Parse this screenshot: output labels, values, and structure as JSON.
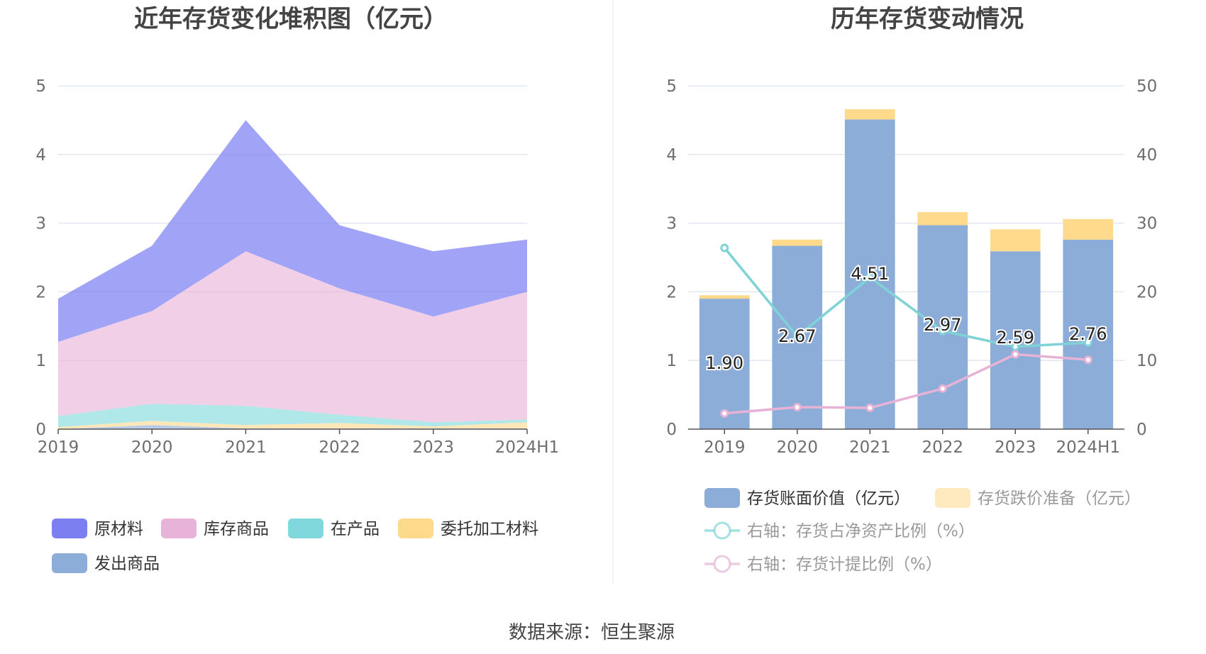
{
  "source_text": "数据来源：恒生聚源",
  "colors": {
    "raw_materials": "#7b7ff2",
    "stock_goods": "#e8b3d9",
    "wip": "#80d8dc",
    "consigned": "#ffd98c",
    "shipped": "#8dadd9",
    "book_value": "#8dadd9",
    "impairment": "#ffd98c",
    "ratio_line": "#7fd3d6",
    "provision_line": "#e6b3d6",
    "grid": "#e0e3f0"
  },
  "chart_data": [
    {
      "type": "area",
      "title": "近年存货变化堆积图（亿元）",
      "categories": [
        "2019",
        "2020",
        "2021",
        "2022",
        "2023",
        "2024H1"
      ],
      "ylim": [
        0,
        5
      ],
      "yticks": [
        "0",
        "1",
        "2",
        "3",
        "4",
        "5"
      ],
      "stacked": true,
      "grid": true,
      "legend_position": "bottom",
      "series": [
        {
          "name": "发出商品",
          "values": [
            0.0,
            0.06,
            0.01,
            0.01,
            0.01,
            0.01
          ]
        },
        {
          "name": "委托加工材料",
          "values": [
            0.03,
            0.06,
            0.05,
            0.08,
            0.03,
            0.09
          ]
        },
        {
          "name": "在产品",
          "values": [
            0.16,
            0.25,
            0.28,
            0.12,
            0.06,
            0.04
          ]
        },
        {
          "name": "库存商品",
          "values": [
            1.08,
            1.35,
            2.25,
            1.84,
            1.54,
            1.86
          ]
        },
        {
          "name": "原材料",
          "values": [
            0.63,
            0.95,
            1.91,
            0.92,
            0.95,
            0.76
          ]
        }
      ],
      "legend_order": [
        "原材料",
        "库存商品",
        "在产品",
        "委托加工材料",
        "发出商品"
      ]
    },
    {
      "type": "bar",
      "title": "历年存货变动情况",
      "categories": [
        "2019",
        "2020",
        "2021",
        "2022",
        "2023",
        "2024H1"
      ],
      "ylim": [
        0,
        5
      ],
      "yticks": [
        "0",
        "1",
        "2",
        "3",
        "4",
        "5"
      ],
      "y2lim": [
        0,
        50
      ],
      "y2ticks": [
        "0",
        "10",
        "20",
        "30",
        "40",
        "50"
      ],
      "stacked": true,
      "grid": true,
      "legend_position": "bottom",
      "series": [
        {
          "name": "存货账面价值（亿元）",
          "type": "bar",
          "axis": "left",
          "values": [
            1.9,
            2.67,
            4.51,
            2.97,
            2.59,
            2.76
          ],
          "labels": [
            "1.90",
            "2.67",
            "4.51",
            "2.97",
            "2.59",
            "2.76"
          ]
        },
        {
          "name": "存货跌价准备（亿元）",
          "type": "bar",
          "axis": "left",
          "values": [
            0.05,
            0.09,
            0.15,
            0.19,
            0.32,
            0.3
          ]
        },
        {
          "name": "右轴：存货占净资产比例（%）",
          "type": "line",
          "axis": "right",
          "values": [
            26.4,
            13.5,
            22.1,
            14.3,
            12.0,
            12.6
          ]
        },
        {
          "name": "右轴：存货计提比例（%）",
          "type": "line",
          "axis": "right",
          "values": [
            2.3,
            3.2,
            3.1,
            5.9,
            10.9,
            10.1
          ]
        }
      ]
    }
  ]
}
